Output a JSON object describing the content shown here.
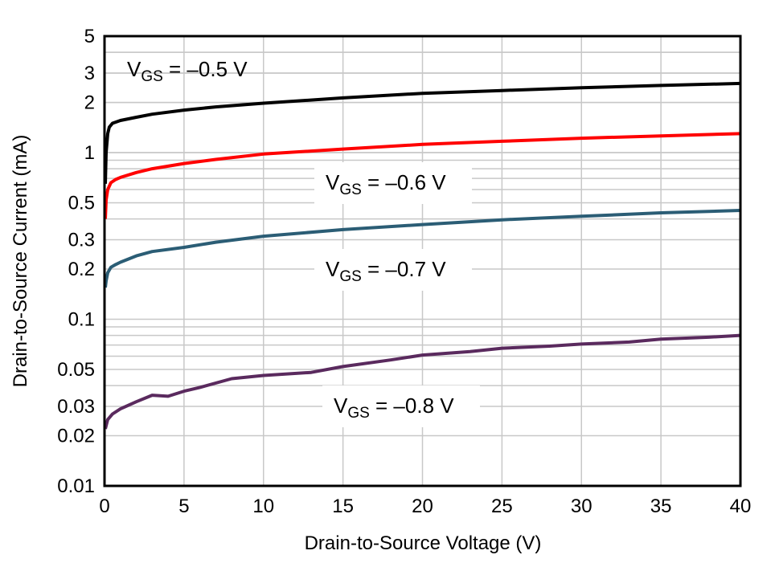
{
  "chart_data": {
    "type": "line",
    "title": "",
    "xlabel": "Drain-to-Source Voltage (V)",
    "ylabel": "Drain-to-Source Current (mA)",
    "xlim": [
      0,
      40
    ],
    "ylim": [
      0.01,
      5
    ],
    "yscale": "log",
    "grid": true,
    "xticks": [
      0,
      5,
      10,
      15,
      20,
      25,
      30,
      35,
      40
    ],
    "yticks": [
      0.01,
      0.02,
      0.03,
      0.05,
      0.1,
      0.2,
      0.3,
      0.5,
      1,
      2,
      3,
      5
    ],
    "ytick_labels": [
      "0.01",
      "0.02",
      "0.03",
      "0.05",
      "0.1",
      "0.2",
      "0.3",
      "0.5",
      "1",
      "2",
      "3",
      "5"
    ],
    "series": [
      {
        "name": "VGS = –0.5 V",
        "label_main": "V",
        "label_sub": "GS",
        "label_rest": " = –0.5 V",
        "color": "#000000",
        "x": [
          0.05,
          0.1,
          0.2,
          0.3,
          0.5,
          1,
          2,
          3,
          5,
          7,
          10,
          15,
          20,
          25,
          30,
          35,
          40
        ],
        "y": [
          0.65,
          1.0,
          1.3,
          1.42,
          1.5,
          1.56,
          1.63,
          1.7,
          1.8,
          1.88,
          1.98,
          2.13,
          2.27,
          2.36,
          2.45,
          2.53,
          2.6
        ]
      },
      {
        "name": "VGS = –0.6 V",
        "label_main": "V",
        "label_sub": "GS",
        "label_rest": " = –0.6 V",
        "color": "#ff0000",
        "x": [
          0.05,
          0.1,
          0.2,
          0.4,
          0.7,
          1,
          2,
          3,
          5,
          7,
          10,
          15,
          20,
          25,
          30,
          35,
          40
        ],
        "y": [
          0.4,
          0.52,
          0.6,
          0.66,
          0.69,
          0.71,
          0.76,
          0.8,
          0.86,
          0.91,
          0.98,
          1.05,
          1.12,
          1.17,
          1.22,
          1.26,
          1.3
        ]
      },
      {
        "name": "VGS = –0.7 V",
        "label_main": "V",
        "label_sub": "GS",
        "label_rest": " = –0.7 V",
        "color": "#2b5d75",
        "x": [
          0.05,
          0.1,
          0.2,
          0.4,
          0.7,
          1,
          2,
          3,
          5,
          7,
          10,
          15,
          20,
          25,
          30,
          35,
          40
        ],
        "y": [
          0.155,
          0.17,
          0.19,
          0.205,
          0.213,
          0.22,
          0.24,
          0.255,
          0.27,
          0.29,
          0.315,
          0.345,
          0.37,
          0.395,
          0.415,
          0.435,
          0.45
        ]
      },
      {
        "name": "VGS = –0.8 V",
        "label_main": "V",
        "label_sub": "GS",
        "label_rest": " = –0.8 V",
        "color": "#5a2a5e",
        "x": [
          0.05,
          0.2,
          0.5,
          1,
          2,
          3,
          4,
          5,
          6,
          8,
          10,
          13,
          15,
          18,
          20,
          23,
          25,
          28,
          30,
          33,
          35,
          38,
          40
        ],
        "y": [
          0.022,
          0.025,
          0.027,
          0.029,
          0.032,
          0.035,
          0.0345,
          0.037,
          0.039,
          0.044,
          0.046,
          0.048,
          0.052,
          0.057,
          0.061,
          0.064,
          0.067,
          0.069,
          0.071,
          0.073,
          0.076,
          0.078,
          0.08
        ]
      }
    ]
  }
}
